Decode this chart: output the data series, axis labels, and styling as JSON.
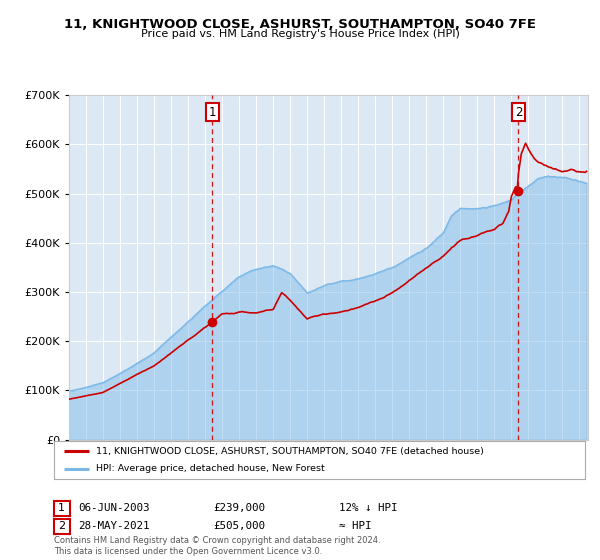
{
  "title_line1": "11, KNIGHTWOOD CLOSE, ASHURST, SOUTHAMPTON, SO40 7FE",
  "title_line2": "Price paid vs. HM Land Registry's House Price Index (HPI)",
  "legend_property": "11, KNIGHTWOOD CLOSE, ASHURST, SOUTHAMPTON, SO40 7FE (detached house)",
  "legend_hpi": "HPI: Average price, detached house, New Forest",
  "annotation1_date": "06-JUN-2003",
  "annotation1_price": "£239,000",
  "annotation1_hpi": "12% ↓ HPI",
  "annotation2_date": "28-MAY-2021",
  "annotation2_price": "£505,000",
  "annotation2_hpi": "≈ HPI",
  "footer": "Contains HM Land Registry data © Crown copyright and database right 2024.\nThis data is licensed under the Open Government Licence v3.0.",
  "background_color": "#ffffff",
  "plot_bg_color": "#dce9f5",
  "hpi_color": "#7ab8e8",
  "property_color": "#cc0000",
  "point1_year": 2003.43,
  "point1_value": 239000,
  "point2_year": 2021.41,
  "point2_value": 505000,
  "ylim": [
    0,
    700000
  ],
  "xlim_start": 1995.0,
  "xlim_end": 2025.5,
  "grid_color": "#ffffff",
  "title_fontsize": 9.5,
  "subtitle_fontsize": 8.0
}
